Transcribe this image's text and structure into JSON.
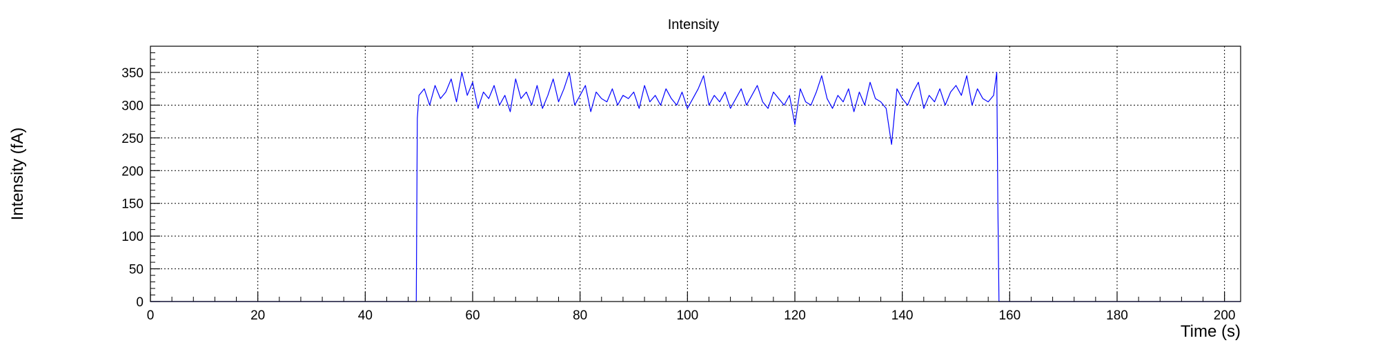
{
  "chart_data": {
    "type": "line",
    "title": "Intensity",
    "xlabel": "Time (s)",
    "ylabel": "Intensity (fA)",
    "xlim": [
      0,
      203
    ],
    "ylim": [
      0,
      390
    ],
    "x_ticks": [
      0,
      20,
      40,
      60,
      80,
      100,
      120,
      140,
      160,
      180,
      200
    ],
    "x_tick_labels": [
      "0",
      "20",
      "40",
      "60",
      "80",
      "100",
      "120",
      "140",
      "160",
      "180",
      "200"
    ],
    "y_ticks": [
      0,
      50,
      100,
      150,
      200,
      250,
      300,
      350
    ],
    "y_tick_labels": [
      "0",
      "50",
      "100",
      "150",
      "200",
      "250",
      "300",
      "350"
    ],
    "grid": true,
    "legend": "none",
    "colors": {
      "series": "#0000ff",
      "grid": "#000000",
      "axis": "#000000"
    },
    "series": [
      {
        "x": [
          0,
          49.5,
          49.7,
          50,
          51,
          52,
          53,
          54,
          55,
          56,
          57,
          58,
          59,
          60,
          61,
          62,
          63,
          64,
          65,
          66,
          67,
          68,
          69,
          70,
          71,
          72,
          73,
          74,
          75,
          76,
          77,
          78,
          79,
          80,
          81,
          82,
          83,
          84,
          85,
          86,
          87,
          88,
          89,
          90,
          91,
          92,
          93,
          94,
          95,
          96,
          97,
          98,
          99,
          100,
          101,
          102,
          103,
          104,
          105,
          106,
          107,
          108,
          109,
          110,
          111,
          112,
          113,
          114,
          115,
          116,
          117,
          118,
          119,
          120,
          121,
          122,
          123,
          124,
          125,
          126,
          127,
          128,
          129,
          130,
          131,
          132,
          133,
          134,
          135,
          136,
          137,
          138,
          139,
          140,
          141,
          142,
          143,
          144,
          145,
          146,
          147,
          148,
          149,
          150,
          151,
          152,
          153,
          154,
          155,
          156,
          157,
          157.6,
          157.8,
          158,
          158.2,
          203
        ],
        "y": [
          0,
          0,
          280,
          315,
          325,
          300,
          330,
          310,
          320,
          340,
          305,
          350,
          315,
          335,
          295,
          320,
          310,
          330,
          300,
          315,
          290,
          340,
          310,
          320,
          300,
          330,
          295,
          315,
          340,
          305,
          325,
          350,
          300,
          315,
          330,
          290,
          320,
          310,
          305,
          325,
          300,
          315,
          310,
          320,
          295,
          330,
          305,
          315,
          300,
          325,
          310,
          300,
          320,
          295,
          310,
          325,
          345,
          300,
          315,
          305,
          320,
          295,
          310,
          325,
          300,
          315,
          330,
          305,
          295,
          320,
          310,
          300,
          315,
          270,
          325,
          305,
          300,
          320,
          345,
          310,
          295,
          315,
          305,
          325,
          290,
          320,
          300,
          335,
          310,
          305,
          295,
          240,
          325,
          310,
          300,
          320,
          335,
          295,
          315,
          305,
          325,
          300,
          320,
          330,
          315,
          345,
          300,
          325,
          310,
          305,
          315,
          350,
          145,
          0,
          0,
          0
        ]
      }
    ]
  }
}
